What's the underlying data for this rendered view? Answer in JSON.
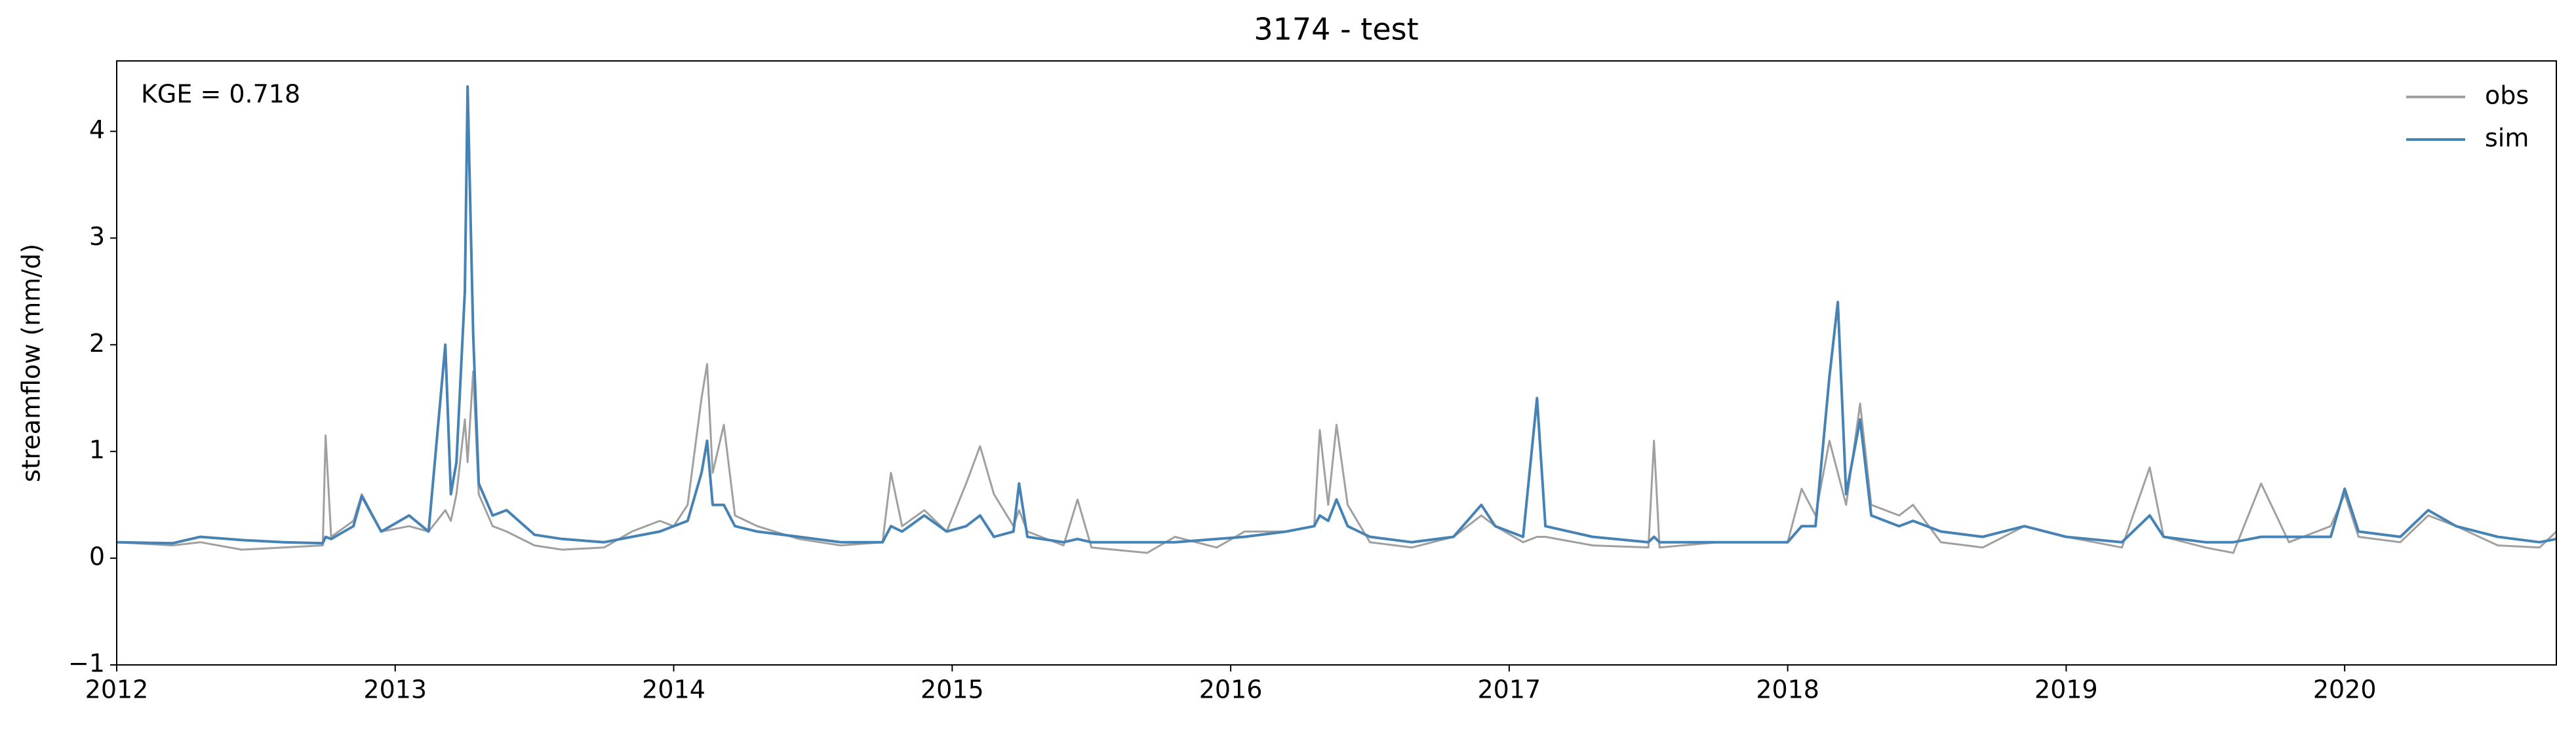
{
  "chart_data": {
    "type": "line",
    "title": "3174 - test",
    "ylabel": "streamflow (mm/d)",
    "annotation": "KGE = 0.718",
    "x": [
      2012.0,
      2012.2,
      2012.3,
      2012.45,
      2012.6,
      2012.74,
      2012.75,
      2012.77,
      2012.85,
      2012.88,
      2012.95,
      2013.05,
      2013.12,
      2013.18,
      2013.2,
      2013.22,
      2013.25,
      2013.26,
      2013.28,
      2013.3,
      2013.35,
      2013.4,
      2013.5,
      2013.6,
      2013.75,
      2013.85,
      2013.95,
      2014.0,
      2014.05,
      2014.1,
      2014.12,
      2014.14,
      2014.18,
      2014.22,
      2014.3,
      2014.45,
      2014.6,
      2014.75,
      2014.78,
      2014.82,
      2014.9,
      2014.98,
      2015.05,
      2015.1,
      2015.15,
      2015.22,
      2015.24,
      2015.27,
      2015.4,
      2015.45,
      2015.5,
      2015.7,
      2015.8,
      2015.95,
      2016.05,
      2016.2,
      2016.3,
      2016.32,
      2016.35,
      2016.38,
      2016.42,
      2016.5,
      2016.65,
      2016.8,
      2016.9,
      2016.95,
      2017.05,
      2017.1,
      2017.13,
      2017.3,
      2017.5,
      2017.52,
      2017.54,
      2017.75,
      2017.9,
      2018.0,
      2018.05,
      2018.1,
      2018.15,
      2018.18,
      2018.21,
      2018.26,
      2018.3,
      2018.4,
      2018.45,
      2018.55,
      2018.7,
      2018.85,
      2019.0,
      2019.2,
      2019.3,
      2019.35,
      2019.5,
      2019.6,
      2019.7,
      2019.8,
      2019.95,
      2020.0,
      2020.05,
      2020.2,
      2020.3,
      2020.4,
      2020.55,
      2020.7,
      2020.76
    ],
    "series": [
      {
        "name": "obs",
        "color": "#a0a0a0",
        "values": [
          0.15,
          0.12,
          0.15,
          0.08,
          0.1,
          0.12,
          1.15,
          0.2,
          0.35,
          0.6,
          0.25,
          0.3,
          0.25,
          0.45,
          0.35,
          0.6,
          1.3,
          0.9,
          1.75,
          0.6,
          0.3,
          0.25,
          0.12,
          0.08,
          0.1,
          0.25,
          0.35,
          0.3,
          0.5,
          1.5,
          1.82,
          0.8,
          1.25,
          0.4,
          0.3,
          0.18,
          0.12,
          0.15,
          0.8,
          0.3,
          0.45,
          0.25,
          0.7,
          1.05,
          0.6,
          0.3,
          0.45,
          0.25,
          0.12,
          0.55,
          0.1,
          0.05,
          0.2,
          0.1,
          0.25,
          0.25,
          0.3,
          1.2,
          0.5,
          1.25,
          0.5,
          0.15,
          0.1,
          0.2,
          0.4,
          0.3,
          0.15,
          0.2,
          0.2,
          0.12,
          0.1,
          1.1,
          0.1,
          0.15,
          0.15,
          0.15,
          0.65,
          0.4,
          1.1,
          0.8,
          0.5,
          1.45,
          0.5,
          0.4,
          0.5,
          0.15,
          0.1,
          0.3,
          0.2,
          0.1,
          0.85,
          0.2,
          0.1,
          0.05,
          0.7,
          0.15,
          0.3,
          0.6,
          0.2,
          0.15,
          0.4,
          0.3,
          0.12,
          0.1,
          0.25
        ]
      },
      {
        "name": "sim",
        "color": "#4682b4",
        "values": [
          0.15,
          0.14,
          0.2,
          0.17,
          0.15,
          0.14,
          0.2,
          0.18,
          0.3,
          0.58,
          0.25,
          0.4,
          0.25,
          2.0,
          0.6,
          0.9,
          2.5,
          4.42,
          2.1,
          0.7,
          0.4,
          0.45,
          0.22,
          0.18,
          0.15,
          0.2,
          0.25,
          0.3,
          0.35,
          0.8,
          1.1,
          0.5,
          0.5,
          0.3,
          0.25,
          0.2,
          0.15,
          0.15,
          0.3,
          0.25,
          0.4,
          0.25,
          0.3,
          0.4,
          0.2,
          0.25,
          0.7,
          0.2,
          0.15,
          0.18,
          0.15,
          0.15,
          0.15,
          0.18,
          0.2,
          0.25,
          0.3,
          0.4,
          0.35,
          0.55,
          0.3,
          0.2,
          0.15,
          0.2,
          0.5,
          0.3,
          0.2,
          1.5,
          0.3,
          0.2,
          0.15,
          0.2,
          0.15,
          0.15,
          0.15,
          0.15,
          0.3,
          0.3,
          1.7,
          2.4,
          0.6,
          1.3,
          0.4,
          0.3,
          0.35,
          0.25,
          0.2,
          0.3,
          0.2,
          0.15,
          0.4,
          0.2,
          0.15,
          0.15,
          0.2,
          0.2,
          0.2,
          0.65,
          0.25,
          0.2,
          0.45,
          0.3,
          0.2,
          0.15,
          0.18
        ]
      }
    ],
    "xlim": [
      2012,
      2020.76
    ],
    "xticks": [
      2012,
      2013,
      2014,
      2015,
      2016,
      2017,
      2018,
      2019,
      2020
    ],
    "ylim": [
      -1,
      4.66
    ],
    "yticks": [
      {
        "value": -1,
        "label": "−1"
      },
      0,
      1,
      2,
      3,
      4
    ],
    "legend": "upper right"
  }
}
